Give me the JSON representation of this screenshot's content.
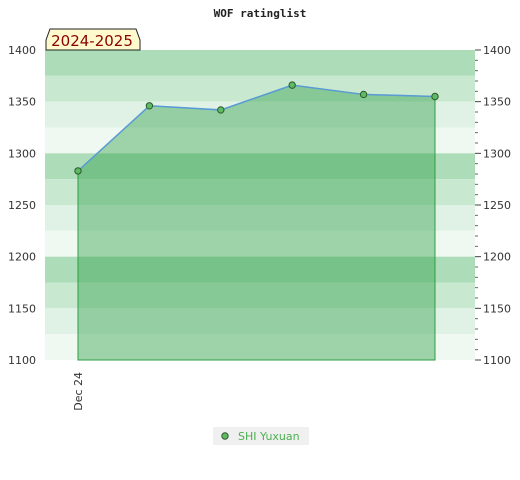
{
  "chart_data": {
    "type": "area",
    "title": "WOF ratinglist",
    "season_label": "2024-2025",
    "x": [
      "Dec 24",
      "",
      "",
      "",
      "",
      ""
    ],
    "series": [
      {
        "name": "SHI Yuxuan",
        "values": [
          1283,
          1346,
          1342,
          1366,
          1357,
          1355
        ]
      }
    ],
    "ylim": [
      1100,
      1400
    ],
    "yticks": [
      1100,
      1150,
      1200,
      1250,
      1300,
      1350,
      1400
    ],
    "grid": true,
    "legend": "bottom-center",
    "colors": {
      "line": "#5a9bd5",
      "area": "#2e9e45",
      "marker_fill": "#5dbb63",
      "marker_stroke": "#2d5a2d",
      "band_dark": "#acdcb8",
      "band_mid": "#c8e8d0",
      "band_light": "#e0f2e6",
      "band_lightest": "#f0f8f2",
      "season_bg": "#fffacd",
      "season_text": "#8b0000",
      "legend_text": "#4caf50",
      "legend_bg": "#f0f0f0"
    }
  }
}
